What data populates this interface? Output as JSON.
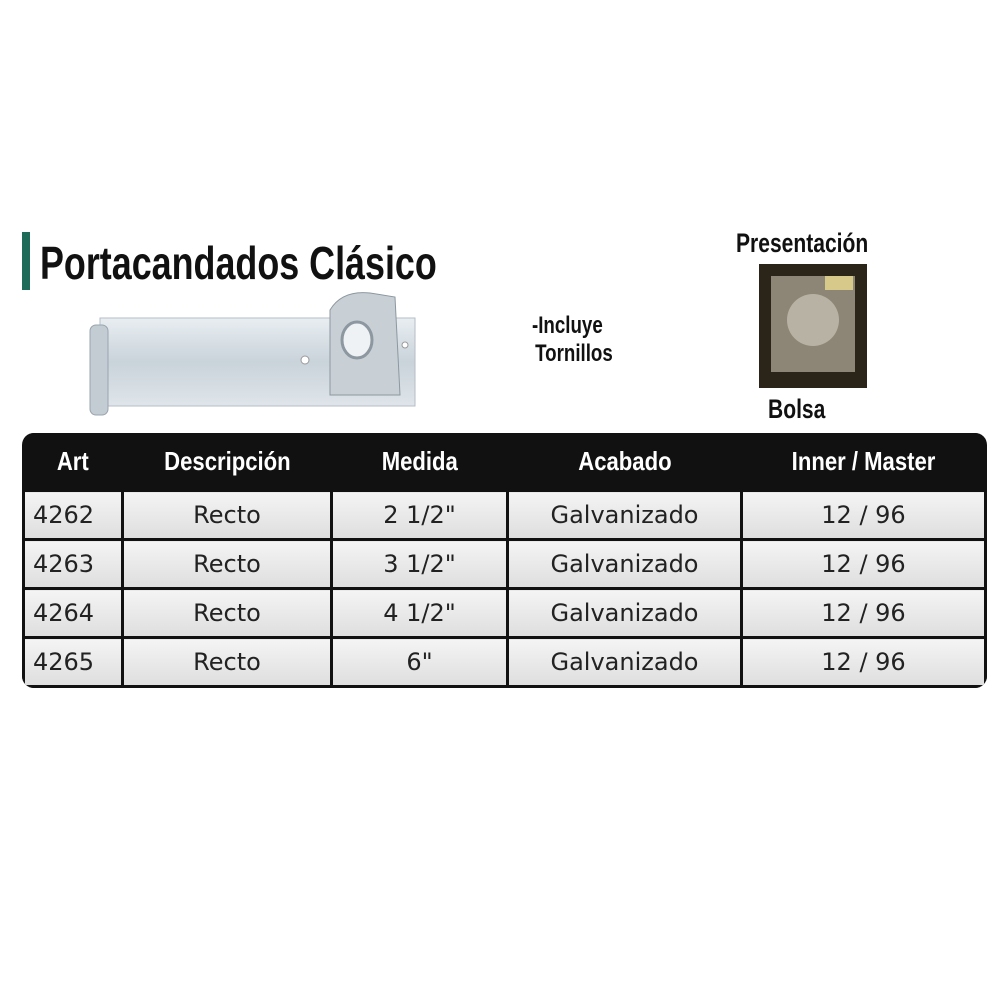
{
  "title": "Portacandados Clásico",
  "accent_color": "#1f6b5a",
  "note": [
    "-Incluye",
    "Tornillos"
  ],
  "presentation": {
    "label": "Presentación",
    "type": "Bolsa"
  },
  "table": {
    "headers": [
      "Art",
      "Descripción",
      "Medida",
      "Acabado",
      "Inner / Master"
    ],
    "rows": [
      [
        "4262",
        "Recto",
        "2 1/2\"",
        "Galvanizado",
        "12 / 96"
      ],
      [
        "4263",
        "Recto",
        "3 1/2\"",
        "Galvanizado",
        "12 / 96"
      ],
      [
        "4264",
        "Recto",
        "4 1/2\"",
        "Galvanizado",
        "12 / 96"
      ],
      [
        "4265",
        "Recto",
        "6\"",
        "Galvanizado",
        "12 / 96"
      ]
    ]
  }
}
